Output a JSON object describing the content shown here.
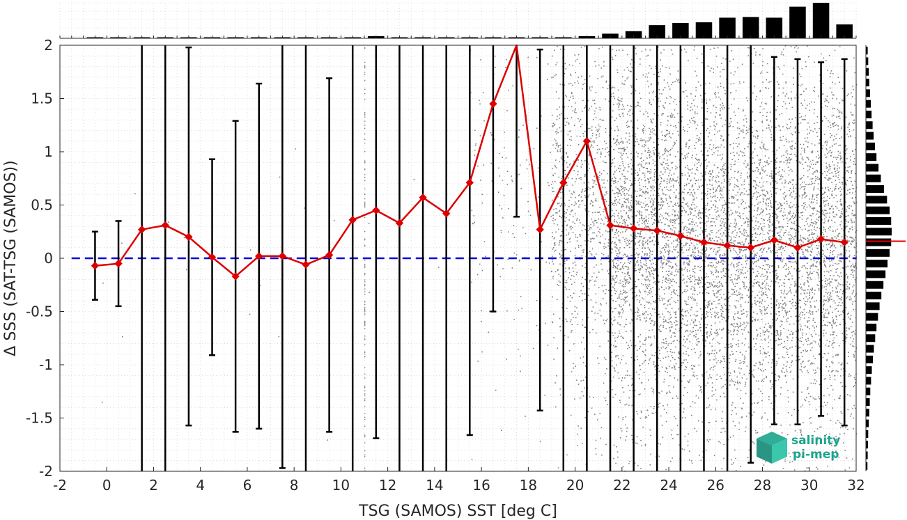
{
  "chart_data": {
    "type": "scatter",
    "xlabel": "TSG (SAMOS) SST [deg C]",
    "ylabel": "Δ SSS (SAT-TSG (SAMOS))",
    "xlim": [
      -2,
      32
    ],
    "ylim": [
      -2,
      2
    ],
    "x_ticks": [
      "-2",
      "0",
      "2",
      "4",
      "6",
      "8",
      "10",
      "12",
      "14",
      "16",
      "18",
      "20",
      "22",
      "24",
      "26",
      "28",
      "30",
      "32"
    ],
    "y_ticks": [
      "-2",
      "-1.5",
      "-1",
      "-0.5",
      "0",
      "0.5",
      "1",
      "1.5",
      "2"
    ],
    "grid": "minor dotted",
    "zero_line": {
      "y": 0,
      "color": "#0000dd",
      "style": "dashed"
    },
    "binned_mean": {
      "color": "#dd0000",
      "marker": "diamond",
      "x": [
        -0.5,
        0.5,
        1.5,
        2.5,
        3.5,
        4.5,
        5.5,
        6.5,
        7.5,
        8.5,
        9.5,
        10.5,
        11.5,
        12.5,
        13.5,
        14.5,
        15.5,
        16.5,
        17.5,
        18.5,
        19.5,
        20.5,
        21.5,
        22.5,
        23.5,
        24.5,
        25.5,
        26.5,
        27.5,
        28.5,
        29.5,
        30.5,
        31.5
      ],
      "y": [
        -0.07,
        -0.05,
        0.27,
        0.31,
        0.2,
        0.01,
        -0.17,
        0.02,
        0.02,
        -0.06,
        0.03,
        0.36,
        0.45,
        0.33,
        0.57,
        0.42,
        0.71,
        1.45,
        2.05,
        0.27,
        0.71,
        1.1,
        0.31,
        0.28,
        0.26,
        0.21,
        0.15,
        0.12,
        0.1,
        0.17,
        0.1,
        0.18,
        0.15
      ]
    },
    "error_bars": {
      "color": "#000000",
      "x": [
        -0.5,
        0.5,
        1.5,
        2.5,
        3.5,
        4.5,
        5.5,
        6.5,
        7.5,
        8.5,
        9.5,
        10.5,
        11.5,
        12.5,
        13.5,
        14.5,
        15.5,
        16.5,
        17.5,
        18.5,
        19.5,
        20.5,
        21.5,
        22.5,
        23.5,
        24.5,
        25.5,
        26.5,
        27.5,
        28.5,
        29.5,
        30.5,
        31.5
      ],
      "low": [
        -0.39,
        -0.45,
        -2.2,
        -2.2,
        -1.57,
        -0.91,
        -1.63,
        -1.6,
        -1.97,
        -2.2,
        -1.63,
        -2.2,
        -1.69,
        -2.2,
        -2.2,
        -2.2,
        -1.66,
        -0.5,
        0.39,
        -1.43,
        -2.2,
        -2.2,
        -2.2,
        -2.2,
        -2.2,
        -2.2,
        -2.2,
        -2.2,
        -1.92,
        -1.56,
        -1.56,
        -1.48,
        -1.57
      ],
      "high": [
        0.25,
        0.35,
        2.2,
        2.2,
        1.98,
        0.93,
        1.29,
        1.64,
        2.2,
        2.2,
        1.69,
        2.2,
        2.2,
        2.2,
        2.2,
        2.2,
        2.2,
        2.2,
        2.2,
        1.96,
        2.2,
        2.2,
        2.2,
        2.2,
        2.2,
        2.2,
        2.2,
        2.2,
        2.2,
        1.89,
        1.87,
        1.84,
        1.87
      ]
    },
    "scatter_color": "#808080",
    "top_histogram": {
      "bin_centers": [
        -0.5,
        0.5,
        1.5,
        2.5,
        3.5,
        4.5,
        5.5,
        6.5,
        7.5,
        8.5,
        9.5,
        10.5,
        11.5,
        12.5,
        13.5,
        14.5,
        15.5,
        16.5,
        17.5,
        18.5,
        19.5,
        20.5,
        21.5,
        22.5,
        23.5,
        24.5,
        25.5,
        26.5,
        27.5,
        28.5,
        29.5,
        30.5,
        31.5
      ],
      "relative_counts": [
        0.005,
        0.005,
        0.005,
        0.005,
        0.005,
        0.005,
        0.005,
        0.005,
        0.005,
        0.005,
        0.005,
        0.005,
        0.06,
        0.005,
        0.005,
        0.005,
        0.01,
        0.02,
        0.02,
        0.02,
        0.03,
        0.06,
        0.13,
        0.2,
        0.37,
        0.43,
        0.45,
        0.58,
        0.6,
        0.58,
        0.89,
        1.0,
        0.39
      ]
    },
    "right_histogram": {
      "bin_centers": [
        1.95,
        1.85,
        1.75,
        1.65,
        1.55,
        1.45,
        1.35,
        1.25,
        1.15,
        1.05,
        0.95,
        0.85,
        0.75,
        0.65,
        0.55,
        0.45,
        0.35,
        0.25,
        0.15,
        0.05,
        -0.05,
        -0.15,
        -0.25,
        -0.35,
        -0.45,
        -0.55,
        -0.65,
        -0.75,
        -0.85,
        -0.95,
        -1.05,
        -1.15,
        -1.25,
        -1.35,
        -1.45,
        -1.55,
        -1.65,
        -1.75,
        -1.85,
        -1.95
      ],
      "relative_counts": [
        0.07,
        0.09,
        0.11,
        0.13,
        0.16,
        0.19,
        0.22,
        0.26,
        0.3,
        0.35,
        0.41,
        0.49,
        0.58,
        0.7,
        0.82,
        0.92,
        0.98,
        1.0,
        0.98,
        0.92,
        0.84,
        0.76,
        0.68,
        0.6,
        0.53,
        0.47,
        0.41,
        0.36,
        0.31,
        0.27,
        0.23,
        0.2,
        0.17,
        0.15,
        0.13,
        0.11,
        0.09,
        0.08,
        0.07,
        0.06
      ]
    },
    "right_histogram_mean": {
      "y": 0.16,
      "color": "#dd0000"
    }
  },
  "logo": {
    "line1": "salinity",
    "line2": "pi-mep",
    "color": "#1aa58c"
  }
}
